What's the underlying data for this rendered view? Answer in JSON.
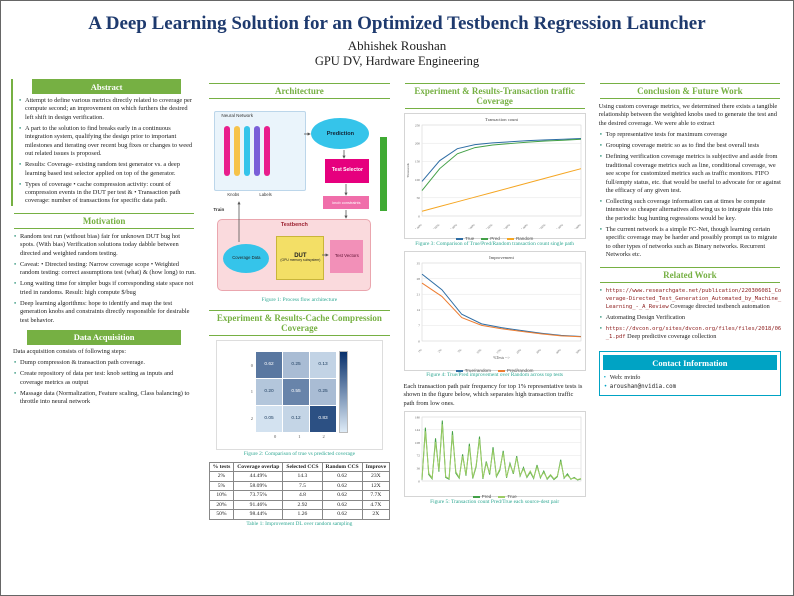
{
  "header": {
    "title": "A Deep Learning Solution for an Optimized Testbench Regression Launcher",
    "author": "Abhishek Roushan",
    "affiliation": "GPU DV, Hardware Engineering"
  },
  "colors": {
    "accent_green": "#76b043",
    "title_navy": "#1e3a6e",
    "contact_teal": "#00a3c4",
    "caption_teal": "#2fa893",
    "link_maroon": "#8b1a1a"
  },
  "abstract": {
    "heading": "Abstract",
    "bullets": [
      "Attempt to define various metrics directly related to coverage per compute second; an improvement on which furthers the desired left shift in design verification.",
      "A part to the solution to find breaks early in a continuous integration system, qualifying the design prior to important milestones and iterating over recent bug fixes or changes to weed out related issues is proposed.",
      "Results: Coverage- existing random test generator vs. a deep learning based test selector applied on top of the generator.",
      "Types of coverage • cache compression activity: count of compression events in the DUT per test & • Transaction path coverage: number of transactions for specific data path."
    ]
  },
  "motivation": {
    "heading": "Motivation",
    "bullets": [
      "Random test run (without bias) fair for unknown DUT bug hot spots. (With bias) Verification solutions today dabble between directed and weighted random testing.",
      "Caveat: • Directed testing: Narrow coverage scope • Weighted random testing: correct assumptions test (what) & (how long) to run.",
      "Long waiting time for simpler bugs if corresponding state space not tried in randoms. Result: high compute $/bug",
      "Deep learning algorithms: hope to identify and map the test generation knobs and constraints directly responsible for desirable test behavior."
    ]
  },
  "data_acquisition": {
    "heading": "Data Acquisition",
    "intro": "Data acquisition consists of following steps:",
    "bullets": [
      "Dump compression & transaction path coverage.",
      "Create repository of data per test: knob setting as inputs and coverage metrics as output",
      "Massage data (Normalization, Feature scaling, Class balancing) to throttle into neural network"
    ]
  },
  "architecture": {
    "heading": "Architecture",
    "caption": "Figure 1: Process flow architecture",
    "diagram": {
      "neural_network": "Neural Network",
      "prediction": "Prediction",
      "test_selector": "Test Selector",
      "knobs": "Knobs",
      "labels_lbl": "Labels",
      "train": "Train",
      "knob_constraints": "knob constraints",
      "testbench": "Testbench",
      "coverage_data": "Coverage Data",
      "dut": "DUT",
      "dut_sub": "(GPU memory subsystem)",
      "test_vectors": "Test Vectors"
    }
  },
  "cache_section": {
    "heading": "Experiment & Results-Cache Compression Coverage",
    "figure2_caption": "Figure 2: Comparison of true vs predicted coverage",
    "table_caption": "Table 1: Improvement DL over random sampling",
    "table": {
      "headers": [
        "% tests",
        "Coverage overlap",
        "Selected CCS",
        "Random CCS",
        "Improve"
      ],
      "rows": [
        [
          "2%",
          "44.49%",
          "14.3",
          "0.62",
          "23X"
        ],
        [
          "5%",
          "58.09%",
          "7.5",
          "0.62",
          "12X"
        ],
        [
          "10%",
          "73.75%",
          "4.8",
          "0.62",
          "7.7X"
        ],
        [
          "20%",
          "91.46%",
          "2.92",
          "0.62",
          "4.7X"
        ],
        [
          "50%",
          "98.44%",
          "1.26",
          "0.62",
          "2X"
        ]
      ]
    }
  },
  "transaction_section": {
    "heading": "Experiment & Results-Transaction traffic Coverage",
    "figure3_caption": "Figure 3: Comparison of True/Pred/Random transaction count single path",
    "figure4_caption": "Figure 4: True/Pred improvement over Random across top tests",
    "body": "Each transaction path pair frequency for top 1% representative tests is shown in the figure below, which separates high transaction traffic path from low ones.",
    "figure5_caption": "Figure 5: Transaction count Pred/True each source-dest pair"
  },
  "conclusion": {
    "heading": "Conclusion & Future Work",
    "intro": "Using custom coverage metrics, we determined there exists a tangible relationship between the weighted knobs used to generate the test and the desired coverage. We were able to extract",
    "bullets": [
      "Top representative tests for maximum coverage",
      "Grouping coverage metric so as to find the best overall tests",
      "Defining verification coverage metrics is subjective and aside from traditional coverage metrics such as line, conditional coverage, we see scope for customized metrics such as traffic monitors. FIFO full/empty status, etc. that would be useful to advocate for or against the efficacy of any given test.",
      "Collecting such coverage information can at times be compute intensive so cheaper alternatives allowing us to integrate this into the periodic bug hunting regressions would be key.",
      "The current network is a simple FC-Net, though learning certain specific coverage may be harder and possibly prompt us to migrate to other types of networks such as Binary networks. Recurrent Networks etc."
    ]
  },
  "related_work": {
    "heading": "Related Work",
    "items": [
      {
        "url": "https://www.researchgate.net/publication/220306081_Coverage-Directed_Test_Generation_Automated_by_Machine_Learning_-_A_Review",
        "text": "Coverage directed testbench automation"
      },
      {
        "url": "",
        "text": "Automating Design Verification"
      },
      {
        "url": "https://dvcon.org/sites/dvcon.org/files/files/2018/06_1.pdf",
        "text": "Deep predictive coverage collection"
      }
    ]
  },
  "contact": {
    "heading": "Contact Information",
    "items": [
      "Web: nvinfo",
      "aroushan@nvidia.com"
    ]
  },
  "chart_data": [
    {
      "id": "fig3",
      "type": "line",
      "title": "Transaction count",
      "ylabel": "Thousands",
      "ylim": [
        0,
        250
      ],
      "x": [
        "5.00%",
        "10.00%",
        "15.00%",
        "20.00%",
        "25.00%",
        "30.00%",
        "35.00%",
        "40.00%",
        "45.00%",
        "50.00%"
      ],
      "series": [
        {
          "name": "True",
          "color": "#2e6da4",
          "values": [
            95,
            152,
            185,
            196,
            201,
            204,
            207,
            209,
            211,
            213
          ]
        },
        {
          "name": "Pred",
          "color": "#43a047",
          "values": [
            70,
            130,
            171,
            188,
            195,
            199,
            203,
            206,
            208,
            211
          ]
        },
        {
          "name": "Random",
          "color": "#f5a623",
          "values": [
            13,
            26,
            39,
            52,
            65,
            78,
            91,
            104,
            117,
            130
          ]
        }
      ]
    },
    {
      "id": "fig4",
      "type": "line",
      "title": "Improvement",
      "xlabel": "%Tests -->",
      "ylim": [
        0,
        35
      ],
      "x": [
        "1%",
        "2%",
        "5%",
        "10%",
        "15%",
        "20%",
        "30%",
        "40%",
        "50%"
      ],
      "series": [
        {
          "name": "True/random",
          "color": "#2e6da4",
          "values": [
            30,
            23,
            12,
            7.7,
            6.0,
            4.7,
            3.5,
            2.5,
            2.0
          ]
        },
        {
          "name": "Pred/random",
          "color": "#ed7d31",
          "values": [
            26,
            20,
            10.5,
            7.0,
            5.5,
            4.3,
            3.2,
            2.3,
            1.9
          ]
        }
      ]
    },
    {
      "id": "fig5",
      "type": "line",
      "title": "",
      "ylim": [
        0,
        180
      ],
      "x": [],
      "series": [
        {
          "name": "Pred",
          "color": "#43a047",
          "values": [
            4,
            150,
            18,
            6,
            120,
            26,
            170,
            10,
            5,
            140,
            22,
            8,
            75,
            15,
            105,
            7,
            40,
            125,
            6,
            55,
            18,
            95,
            12,
            30,
            85,
            9,
            50,
            20,
            70,
            14,
            38,
            10,
            25,
            7,
            45,
            9,
            28,
            5,
            16,
            4,
            12,
            60,
            8,
            20,
            5,
            10,
            3,
            6
          ]
        },
        {
          "name": "True",
          "color": "#9ccc65",
          "values": [
            6,
            140,
            22,
            8,
            110,
            30,
            160,
            12,
            7,
            130,
            26,
            10,
            70,
            18,
            98,
            9,
            44,
            118,
            8,
            50,
            22,
            88,
            14,
            34,
            80,
            11,
            46,
            24,
            66,
            16,
            34,
            12,
            28,
            9,
            40,
            11,
            24,
            7,
            18,
            6,
            14,
            55,
            10,
            16,
            6,
            8,
            4,
            7
          ]
        }
      ]
    },
    {
      "id": "fig2",
      "type": "heatmap",
      "x_labels": [
        "0",
        "1",
        "2"
      ],
      "y_labels": [
        "0",
        "1",
        "2"
      ],
      "matrix": [
        [
          0.62,
          0.25,
          0.13
        ],
        [
          0.2,
          0.55,
          0.25
        ],
        [
          0.05,
          0.12,
          0.83
        ]
      ]
    }
  ]
}
